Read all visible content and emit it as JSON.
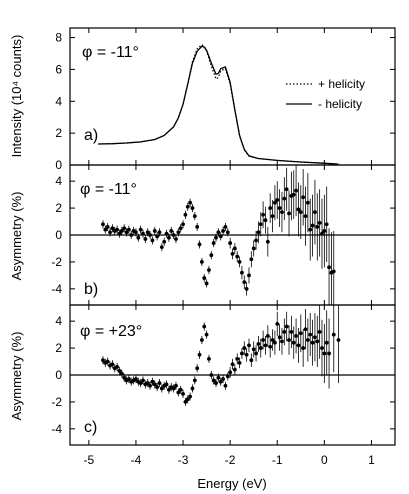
{
  "chart_data": [
    {
      "type": "line",
      "panel_label": "a)",
      "annotation": "φ = -11°",
      "ylabel": "Intensity (10⁴ counts)",
      "xlim": [
        -5.4,
        1.5
      ],
      "ylim": [
        0,
        8.6
      ],
      "yticks": [
        0,
        2,
        4,
        6,
        8
      ],
      "legend_position": "right",
      "series": [
        {
          "name": "+ helicity",
          "style": "dotted",
          "x": [
            -4.8,
            -4.5,
            -4.2,
            -3.9,
            -3.6,
            -3.4,
            -3.2,
            -3.1,
            -3.0,
            -2.9,
            -2.8,
            -2.7,
            -2.6,
            -2.55,
            -2.5,
            -2.4,
            -2.3,
            -2.25,
            -2.2,
            -2.1,
            -2.0,
            -1.9,
            -1.8,
            -1.7,
            -1.6,
            -1.4,
            -1.0,
            -0.5,
            0.0,
            0.3
          ],
          "y": [
            1.32,
            1.34,
            1.38,
            1.45,
            1.6,
            1.85,
            2.4,
            2.95,
            3.8,
            5.1,
            6.5,
            7.3,
            7.55,
            7.45,
            7.15,
            6.2,
            5.4,
            5.5,
            5.9,
            6.05,
            5.1,
            3.4,
            1.8,
            0.95,
            0.55,
            0.4,
            0.28,
            0.18,
            0.1,
            0.05
          ]
        },
        {
          "name": "- helicity",
          "style": "solid",
          "x": [
            -4.8,
            -4.5,
            -4.2,
            -3.9,
            -3.6,
            -3.4,
            -3.2,
            -3.1,
            -3.0,
            -2.9,
            -2.8,
            -2.7,
            -2.6,
            -2.55,
            -2.5,
            -2.4,
            -2.3,
            -2.25,
            -2.2,
            -2.1,
            -2.0,
            -1.9,
            -1.8,
            -1.7,
            -1.6,
            -1.4,
            -1.0,
            -0.5,
            0.0,
            0.3
          ],
          "y": [
            1.32,
            1.34,
            1.38,
            1.45,
            1.6,
            1.85,
            2.4,
            2.95,
            3.8,
            5.1,
            6.4,
            7.15,
            7.45,
            7.4,
            7.2,
            6.4,
            5.7,
            5.75,
            6.05,
            6.15,
            5.2,
            3.45,
            1.85,
            0.98,
            0.57,
            0.41,
            0.29,
            0.19,
            0.11,
            0.05
          ]
        }
      ]
    },
    {
      "type": "scatter",
      "panel_label": "b)",
      "annotation": "φ = -11°",
      "ylabel": "Asymmetry (%)",
      "xlim": [
        -5.4,
        1.5
      ],
      "ylim": [
        -5.2,
        5.2
      ],
      "yticks": [
        -4,
        -2,
        0,
        2,
        4
      ],
      "zero_line": true,
      "x": [
        -4.7,
        -4.65,
        -4.6,
        -4.55,
        -4.5,
        -4.45,
        -4.4,
        -4.35,
        -4.3,
        -4.25,
        -4.2,
        -4.15,
        -4.1,
        -4.05,
        -4.0,
        -3.95,
        -3.9,
        -3.85,
        -3.8,
        -3.75,
        -3.7,
        -3.65,
        -3.6,
        -3.55,
        -3.5,
        -3.45,
        -3.4,
        -3.35,
        -3.3,
        -3.25,
        -3.2,
        -3.15,
        -3.1,
        -3.05,
        -3.0,
        -2.95,
        -2.9,
        -2.85,
        -2.8,
        -2.75,
        -2.7,
        -2.65,
        -2.6,
        -2.55,
        -2.5,
        -2.45,
        -2.4,
        -2.35,
        -2.3,
        -2.25,
        -2.2,
        -2.15,
        -2.1,
        -2.05,
        -2.0,
        -1.95,
        -1.9,
        -1.85,
        -1.8,
        -1.75,
        -1.7,
        -1.65,
        -1.6,
        -1.55,
        -1.5,
        -1.45,
        -1.4,
        -1.35,
        -1.3,
        -1.25,
        -1.2,
        -1.15,
        -1.1,
        -1.05,
        -1.0,
        -0.95,
        -0.9,
        -0.85,
        -0.8,
        -0.75,
        -0.7,
        -0.65,
        -0.6,
        -0.55,
        -0.5,
        -0.45,
        -0.4,
        -0.35,
        -0.3,
        -0.25,
        -0.2,
        -0.15,
        -0.1,
        -0.05,
        0.0,
        0.05,
        0.1,
        0.15,
        0.2
      ],
      "y": [
        0.8,
        0.4,
        0.6,
        0.2,
        0.5,
        0.3,
        0.4,
        0.1,
        0.3,
        0.5,
        0.2,
        0.4,
        0.0,
        0.3,
        0.2,
        -0.2,
        0.4,
        0.1,
        -0.3,
        0.2,
        0.0,
        -0.4,
        0.3,
        -0.1,
        0.2,
        -0.9,
        -0.5,
        0.1,
        -0.2,
        0.3,
        0.0,
        -0.3,
        0.2,
        0.5,
        0.8,
        1.5,
        2.1,
        2.4,
        2.0,
        1.4,
        0.6,
        -0.7,
        -2.0,
        -3.2,
        -3.6,
        -2.6,
        -1.5,
        -0.6,
        -0.2,
        0.2,
        -0.1,
        0.3,
        0.6,
        0.2,
        -0.6,
        -1.4,
        -1.0,
        -1.6,
        -2.0,
        -2.8,
        -3.5,
        -4.0,
        -3.0,
        -1.8,
        -1.0,
        -0.4,
        0.2,
        0.8,
        1.5,
        1.1,
        -0.5,
        2.0,
        1.4,
        2.4,
        2.6,
        2.0,
        1.7,
        2.7,
        3.4,
        1.6,
        2.9,
        3.0,
        3.3,
        1.9,
        1.7,
        2.8,
        1.4,
        2.4,
        0.4,
        0.7,
        1.7,
        0.6,
        0.9,
        0.1,
        0.3,
        0.8,
        -2.4,
        -2.8,
        -2.7
      ],
      "yerr": [
        0.3,
        0.3,
        0.3,
        0.3,
        0.3,
        0.3,
        0.3,
        0.3,
        0.3,
        0.3,
        0.3,
        0.3,
        0.3,
        0.3,
        0.3,
        0.3,
        0.3,
        0.3,
        0.3,
        0.3,
        0.3,
        0.3,
        0.3,
        0.3,
        0.3,
        0.3,
        0.3,
        0.3,
        0.3,
        0.3,
        0.3,
        0.3,
        0.3,
        0.3,
        0.3,
        0.3,
        0.3,
        0.3,
        0.3,
        0.3,
        0.3,
        0.3,
        0.3,
        0.3,
        0.3,
        0.3,
        0.3,
        0.3,
        0.3,
        0.3,
        0.3,
        0.3,
        0.3,
        0.3,
        0.4,
        0.4,
        0.4,
        0.4,
        0.4,
        0.5,
        0.5,
        0.5,
        0.6,
        0.6,
        0.6,
        0.7,
        0.8,
        0.9,
        1.0,
        1.0,
        1.1,
        1.1,
        1.2,
        1.3,
        1.4,
        1.4,
        1.5,
        1.6,
        1.6,
        1.7,
        1.8,
        1.8,
        1.9,
        2.0,
        2.0,
        2.1,
        2.2,
        2.2,
        2.3,
        2.3,
        2.4,
        2.5,
        2.5,
        2.6,
        2.7,
        2.8,
        2.9,
        3.0,
        3.0
      ]
    },
    {
      "type": "scatter",
      "panel_label": "c)",
      "annotation": "φ = +23°",
      "ylabel": "Asymmetry (%)",
      "xlabel": "Energy (eV)",
      "xlim": [
        -5.4,
        1.5
      ],
      "ylim": [
        -5.2,
        5.2
      ],
      "yticks": [
        -4,
        -2,
        0,
        2,
        4
      ],
      "xticks": [
        -5,
        -4,
        -3,
        -2,
        -1,
        0,
        1
      ],
      "zero_line": true,
      "x": [
        -4.7,
        -4.65,
        -4.6,
        -4.55,
        -4.5,
        -4.45,
        -4.4,
        -4.35,
        -4.3,
        -4.25,
        -4.2,
        -4.15,
        -4.1,
        -4.05,
        -4.0,
        -3.95,
        -3.9,
        -3.85,
        -3.8,
        -3.75,
        -3.7,
        -3.65,
        -3.6,
        -3.55,
        -3.5,
        -3.45,
        -3.4,
        -3.35,
        -3.3,
        -3.25,
        -3.2,
        -3.15,
        -3.1,
        -3.05,
        -3.0,
        -2.95,
        -2.9,
        -2.85,
        -2.8,
        -2.75,
        -2.7,
        -2.65,
        -2.6,
        -2.55,
        -2.5,
        -2.45,
        -2.4,
        -2.35,
        -2.3,
        -2.25,
        -2.2,
        -2.15,
        -2.1,
        -2.05,
        -2.0,
        -1.95,
        -1.9,
        -1.85,
        -1.8,
        -1.75,
        -1.7,
        -1.65,
        -1.6,
        -1.55,
        -1.5,
        -1.45,
        -1.4,
        -1.35,
        -1.3,
        -1.25,
        -1.2,
        -1.15,
        -1.1,
        -1.05,
        -1.0,
        -0.95,
        -0.9,
        -0.85,
        -0.8,
        -0.75,
        -0.7,
        -0.65,
        -0.6,
        -0.55,
        -0.5,
        -0.45,
        -0.4,
        -0.35,
        -0.3,
        -0.25,
        -0.2,
        -0.15,
        -0.1,
        -0.05,
        0.0,
        0.05,
        0.1,
        0.2,
        0.3
      ],
      "y": [
        1.1,
        0.9,
        1.0,
        0.7,
        0.8,
        0.5,
        0.6,
        0.3,
        0.1,
        -0.2,
        -0.4,
        -0.3,
        -0.5,
        -0.4,
        -0.3,
        -0.5,
        -0.6,
        -0.4,
        -0.7,
        -0.6,
        -0.8,
        -0.5,
        -0.7,
        -0.9,
        -0.6,
        -1.0,
        -0.8,
        -0.7,
        -1.1,
        -0.9,
        -1.0,
        -0.8,
        -1.3,
        -1.1,
        -1.4,
        -2.0,
        -1.8,
        -1.6,
        -1.0,
        -0.4,
        0.5,
        1.5,
        2.6,
        3.6,
        3.0,
        1.2,
        0.0,
        -0.4,
        -0.6,
        -0.2,
        -0.5,
        -0.3,
        -0.8,
        -0.1,
        0.2,
        0.8,
        0.4,
        1.2,
        0.9,
        1.6,
        2.0,
        1.5,
        2.2,
        1.1,
        1.9,
        1.6,
        2.3,
        2.0,
        2.6,
        2.2,
        2.9,
        2.1,
        2.6,
        2.4,
        3.8,
        2.8,
        2.5,
        3.2,
        3.6,
        2.6,
        3.2,
        2.4,
        2.9,
        2.2,
        3.1,
        2.0,
        3.4,
        2.6,
        3.0,
        2.4,
        2.8,
        2.5,
        3.2,
        2.0,
        1.6,
        2.4,
        1.6,
        3.0,
        2.6
      ],
      "yerr": [
        0.3,
        0.3,
        0.3,
        0.3,
        0.3,
        0.3,
        0.3,
        0.3,
        0.3,
        0.3,
        0.3,
        0.3,
        0.3,
        0.3,
        0.3,
        0.3,
        0.3,
        0.3,
        0.3,
        0.3,
        0.3,
        0.3,
        0.3,
        0.3,
        0.3,
        0.3,
        0.3,
        0.3,
        0.3,
        0.3,
        0.3,
        0.3,
        0.3,
        0.3,
        0.3,
        0.3,
        0.3,
        0.3,
        0.3,
        0.3,
        0.3,
        0.3,
        0.3,
        0.3,
        0.3,
        0.3,
        0.3,
        0.3,
        0.3,
        0.3,
        0.3,
        0.3,
        0.3,
        0.3,
        0.4,
        0.4,
        0.4,
        0.4,
        0.4,
        0.4,
        0.5,
        0.5,
        0.5,
        0.5,
        0.6,
        0.6,
        0.6,
        0.7,
        0.7,
        0.7,
        0.8,
        0.8,
        0.8,
        0.9,
        0.9,
        1.0,
        1.0,
        1.0,
        1.1,
        1.1,
        1.2,
        1.2,
        1.3,
        1.3,
        1.4,
        1.4,
        1.5,
        1.6,
        1.6,
        1.7,
        1.8,
        1.9,
        2.0,
        2.1,
        2.2,
        2.4,
        2.6,
        2.8,
        3.2
      ]
    }
  ]
}
